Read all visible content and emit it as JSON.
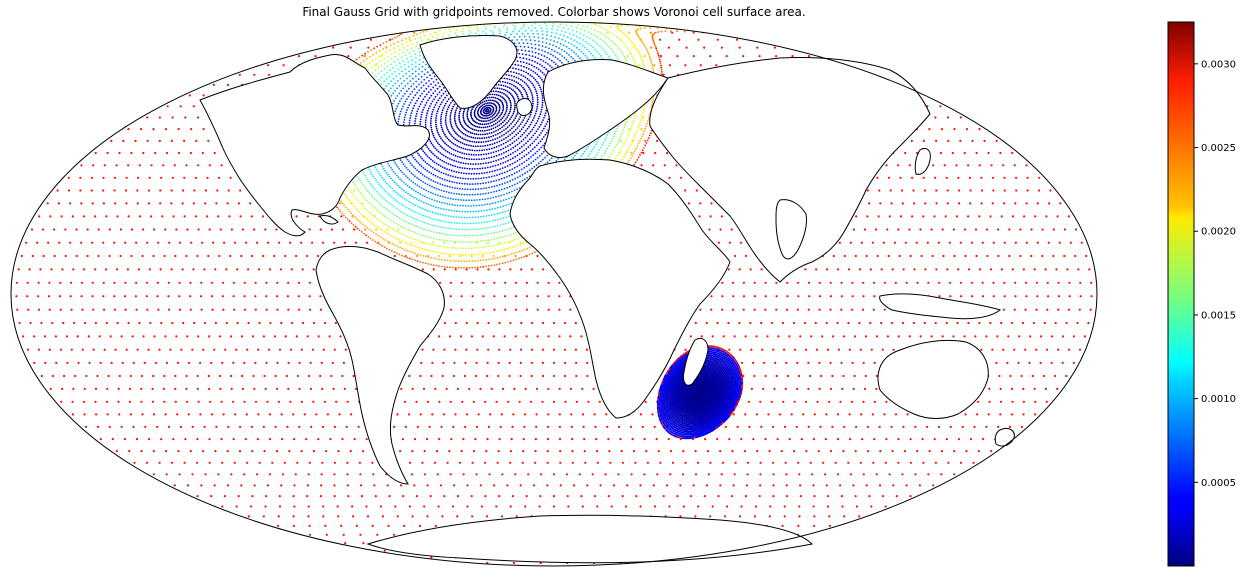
{
  "figure": {
    "title": "Final Gauss Grid with gridpoints removed. Colorbar shows Voronoi cell surface area."
  },
  "colorbar": {
    "colormap": "jet",
    "vmin": 0.0,
    "vmax": 0.00325,
    "ticks": [
      {
        "value": 0.0005,
        "label": "0.0005"
      },
      {
        "value": 0.001,
        "label": "0.0010"
      },
      {
        "value": 0.0015,
        "label": "0.0015"
      },
      {
        "value": 0.002,
        "label": "0.0020"
      },
      {
        "value": 0.0025,
        "label": "0.0025"
      },
      {
        "value": 0.003,
        "label": "0.0030"
      }
    ]
  },
  "map": {
    "projection": "mollweide",
    "coastline_color": "#000000",
    "background_color": "#ffffff",
    "refinement_regions": [
      {
        "name": "north-atlantic",
        "lon": -30,
        "lat": 52,
        "inner_value": 3e-05,
        "value_at_edge": 0.0025,
        "radius_deg": 45
      },
      {
        "name": "madagascar",
        "lon": 52,
        "lat": -27,
        "inner_value": 5e-05,
        "value_at_edge": 0.0004,
        "radius_deg": 13
      }
    ],
    "background_value": 0.0028
  }
}
